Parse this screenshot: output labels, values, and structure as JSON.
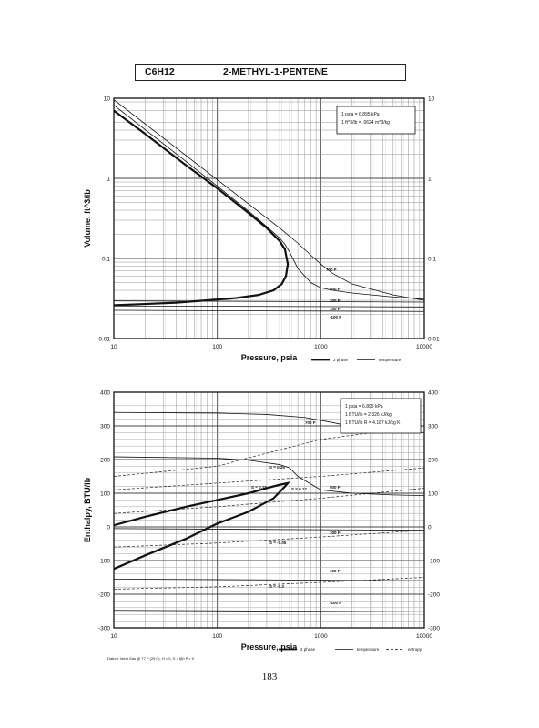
{
  "header": {
    "formula": "C6H12",
    "name": "2-METHYL-1-PENTENE"
  },
  "page_number": "183",
  "chart_data": [
    {
      "type": "line",
      "title": "",
      "xlabel": "Pressure, psia",
      "ylabel": "Volume, ft^3/lb",
      "xscale": "log",
      "yscale": "log",
      "xlim": [
        10,
        10000
      ],
      "ylim": [
        0.01,
        10
      ],
      "grid": true,
      "x_tick_labels": [
        "10",
        "100",
        "1000",
        "10000"
      ],
      "y_tick_labels": [
        "0.01",
        "0.1",
        "1",
        "10"
      ],
      "legend": {
        "placement": "bottom-right",
        "entries": [
          "2 phase",
          "temperature"
        ]
      },
      "notes": [
        "1 psia = 6.895 kPa",
        "1 ft^3/lb = .0624 m^3/kg"
      ],
      "series": [
        {
          "name": "2 phase",
          "x": [
            10,
            20,
            50,
            100,
            200,
            300,
            400,
            450,
            480,
            460,
            420,
            350,
            250,
            150,
            80,
            40,
            20,
            10
          ],
          "y": [
            7.0,
            3.6,
            1.45,
            0.75,
            0.37,
            0.24,
            0.165,
            0.13,
            0.085,
            0.06,
            0.048,
            0.04,
            0.035,
            0.032,
            0.03,
            0.028,
            0.027,
            0.026
          ]
        },
        {
          "name": "700 F",
          "x": [
            10,
            100,
            200,
            400,
            600,
            800,
            1000,
            1300,
            2000,
            5000,
            10000
          ],
          "y": [
            9.6,
            0.96,
            0.48,
            0.24,
            0.155,
            0.11,
            0.085,
            0.065,
            0.048,
            0.035,
            0.03
          ]
        },
        {
          "name": "500 F",
          "x": [
            10,
            50,
            100,
            200,
            300,
            400,
            450,
            500,
            600,
            800,
            1000,
            1300,
            2000,
            5000,
            10000
          ],
          "y": [
            8.2,
            1.62,
            0.8,
            0.39,
            0.25,
            0.18,
            0.15,
            0.12,
            0.075,
            0.05,
            0.043,
            0.04,
            0.037,
            0.033,
            0.031
          ]
        },
        {
          "name": "300 F",
          "x": [
            10,
            10000
          ],
          "y": [
            0.0295,
            0.0285
          ]
        },
        {
          "name": "100 F",
          "x": [
            10,
            10000
          ],
          "y": [
            0.0255,
            0.0248
          ]
        },
        {
          "name": "-100 F",
          "x": [
            10,
            10000
          ],
          "y": [
            0.0225,
            0.0218
          ]
        }
      ],
      "labels": [
        "700 F",
        "500 F",
        "300 F",
        "100 F",
        "-100 F"
      ]
    },
    {
      "type": "line",
      "title": "",
      "xlabel": "Pressure, psia",
      "ylabel": "Enthalpy, BTU/lb",
      "xscale": "log",
      "xlim": [
        10,
        10000
      ],
      "ylim": [
        -300,
        400
      ],
      "grid": true,
      "x_tick_labels": [
        "10",
        "100",
        "1000",
        "10000"
      ],
      "y_tick_labels": [
        "-300",
        "-200",
        "-100",
        "0",
        "100",
        "200",
        "300",
        "400"
      ],
      "legend": {
        "placement": "bottom-right",
        "entries": [
          "2 phase",
          "temperature",
          "entropy"
        ]
      },
      "notes": [
        "1 psia = 6.895 kPa",
        "1 BTU/lb = 2.326 kJ/kg",
        "1 BTU/lb R = 4.187 kJ/kg K"
      ],
      "footnote": "Datum: Ideal Gas @ 77 F (25 C), H = 0, S = f(lb P = 0",
      "series": [
        {
          "name": "2 phase",
          "x": [
            10,
            20,
            50,
            100,
            200,
            300,
            400,
            480,
            450,
            350,
            200,
            100,
            50,
            20,
            10
          ],
          "y": [
            5,
            30,
            60,
            80,
            100,
            115,
            125,
            130,
            120,
            85,
            45,
            10,
            -35,
            -85,
            -125
          ]
        },
        {
          "name": "700 F",
          "x": [
            10,
            100,
            300,
            700,
            1300,
            2000,
            5000,
            10000
          ],
          "y": [
            340,
            338,
            334,
            325,
            310,
            298,
            285,
            280
          ]
        },
        {
          "name": "500 F",
          "x": [
            10,
            100,
            200,
            400,
            500,
            600,
            1000,
            2000,
            5000,
            10000
          ],
          "y": [
            208,
            204,
            198,
            185,
            175,
            150,
            110,
            100,
            95,
            93
          ]
        },
        {
          "name": "300 F",
          "x": [
            10,
            10000
          ],
          "y": [
            -5,
            -10
          ]
        },
        {
          "name": "100 F",
          "x": [
            10,
            10000
          ],
          "y": [
            -155,
            -160
          ]
        },
        {
          "name": "-100 F",
          "x": [
            10,
            10000
          ],
          "y": [
            -248,
            -252
          ]
        }
      ],
      "entropy_lines": [
        {
          "name": "S = 0.25",
          "x": [
            10,
            100,
            200,
            1000,
            10000
          ],
          "y": [
            150,
            180,
            205,
            260,
            300
          ]
        },
        {
          "name": "S = 0.15",
          "x": [
            10,
            100,
            1000,
            10000
          ],
          "y": [
            110,
            130,
            150,
            175
          ]
        },
        {
          "name": "S = 0.12",
          "x": [
            10,
            100,
            1000,
            10000
          ],
          "y": [
            40,
            60,
            85,
            115
          ]
        },
        {
          "name": "S = -0.05",
          "x": [
            10,
            100,
            1000,
            10000
          ],
          "y": [
            -60,
            -48,
            -30,
            -10
          ]
        },
        {
          "name": "S = -0.3",
          "x": [
            10,
            100,
            1000,
            10000
          ],
          "y": [
            -185,
            -178,
            -165,
            -150
          ]
        }
      ],
      "labels": [
        "700 F",
        "S = 0.25",
        "S = 0.15",
        "S = 0.12",
        "500 F",
        "300 F",
        "S = -0.05",
        "100 F",
        "S = -0.3",
        "-100 F"
      ]
    }
  ]
}
